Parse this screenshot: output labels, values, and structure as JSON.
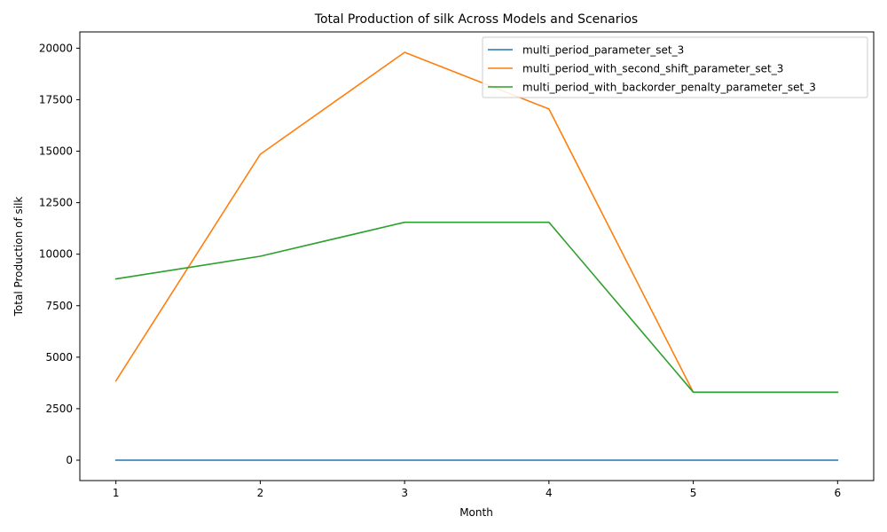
{
  "chart_data": {
    "type": "line",
    "title": "Total Production of silk Across Models and Scenarios",
    "xlabel": "Month",
    "ylabel": "Total Production of silk",
    "x": [
      1,
      2,
      3,
      4,
      5,
      6
    ],
    "xticks": [
      "1",
      "2",
      "3",
      "4",
      "5",
      "6"
    ],
    "xlim": [
      0.75,
      6.25
    ],
    "yticks": [
      "0",
      "2500",
      "5000",
      "7500",
      "10000",
      "12500",
      "15000",
      "17500",
      "20000"
    ],
    "ylim": [
      -990,
      20790
    ],
    "legend_position": "top-right",
    "grid": false,
    "series": [
      {
        "name": "multi_period_parameter_set_3",
        "color": "#1f77b4",
        "values": [
          0,
          0,
          0,
          0,
          0,
          0
        ]
      },
      {
        "name": "multi_period_with_second_shift_parameter_set_3",
        "color": "#ff7f0e",
        "values": [
          3850,
          14850,
          19800,
          17050,
          3300,
          3300
        ]
      },
      {
        "name": "multi_period_with_backorder_penalty_parameter_set_3",
        "color": "#2ca02c",
        "values": [
          8800,
          9900,
          11550,
          11550,
          3300,
          3300
        ]
      }
    ]
  }
}
